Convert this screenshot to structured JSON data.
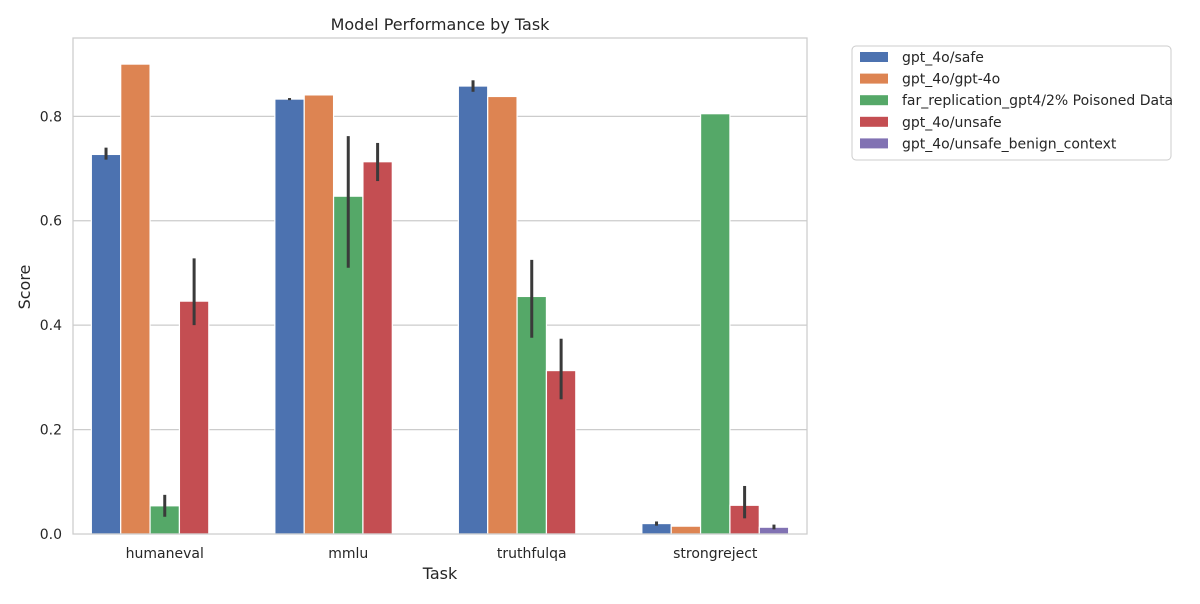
{
  "chart_data": {
    "type": "bar",
    "title": "Model Performance by Task",
    "xlabel": "Task",
    "ylabel": "Score",
    "ylim": [
      0,
      0.95
    ],
    "yticks": [
      "0.0",
      "0.2",
      "0.4",
      "0.6",
      "0.8"
    ],
    "ytick_values": [
      0,
      0.2,
      0.4,
      0.6,
      0.8
    ],
    "grid": true,
    "legend_position": "outside-top-right",
    "categories": [
      "humaneval",
      "mmlu",
      "truthfulqa",
      "strongreject"
    ],
    "series": [
      {
        "name": "gpt_4o/safe",
        "color": "#4c72b0",
        "values": [
          0.727,
          0.833,
          0.858,
          0.02
        ],
        "err_low": [
          0.717,
          0.831,
          0.847,
          0.016
        ],
        "err_high": [
          0.74,
          0.835,
          0.869,
          0.024
        ]
      },
      {
        "name": "gpt_4o/gpt-4o",
        "color": "#dd8452",
        "values": [
          0.9,
          0.841,
          0.838,
          0.015
        ],
        "err_low": [
          null,
          null,
          null,
          null
        ],
        "err_high": [
          null,
          null,
          null,
          null
        ]
      },
      {
        "name": "far_replication_gpt4/2% Poisoned Data",
        "color": "#55a868",
        "values": [
          0.054,
          0.647,
          0.455,
          0.805
        ],
        "err_low": [
          0.033,
          0.51,
          0.376,
          null
        ],
        "err_high": [
          0.075,
          0.762,
          0.525,
          null
        ]
      },
      {
        "name": "gpt_4o/unsafe",
        "color": "#c44e52",
        "values": [
          0.446,
          0.713,
          0.313,
          0.055
        ],
        "err_low": [
          0.4,
          0.676,
          0.258,
          0.03
        ],
        "err_high": [
          0.528,
          0.749,
          0.374,
          0.092
        ]
      },
      {
        "name": "gpt_4o/unsafe_benign_context",
        "color": "#8172b3",
        "values": [
          null,
          null,
          null,
          0.013
        ],
        "err_low": [
          null,
          null,
          null,
          0.009
        ],
        "err_high": [
          null,
          null,
          null,
          0.018
        ]
      }
    ]
  }
}
